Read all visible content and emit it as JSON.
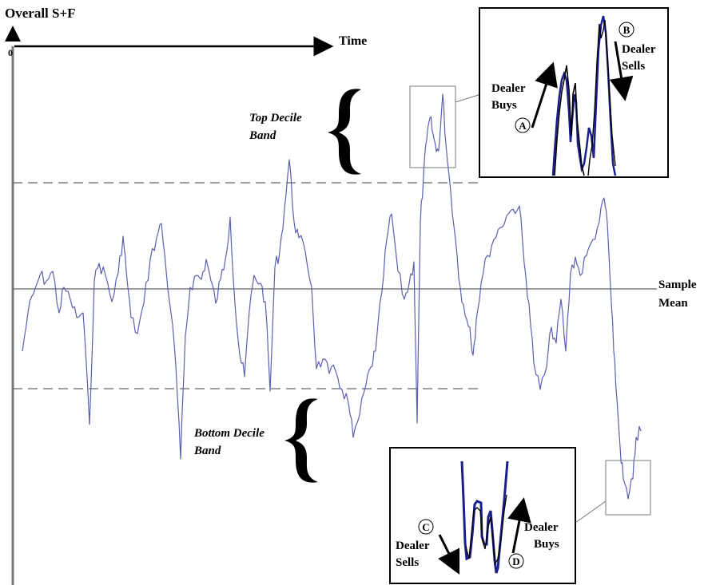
{
  "chart_data": {
    "type": "line",
    "title": "",
    "ylabel": "Overall S+F",
    "xlabel": "Time",
    "y_origin_label": "0",
    "reference_lines": {
      "mean_label_1": "Sample",
      "mean_label_2": "Mean",
      "top_band_1": "Top Decile",
      "top_band_2": "Band",
      "bottom_band_1": "Bottom Decile",
      "bottom_band_2": "Band"
    },
    "insets": [
      {
        "name": "top-inset",
        "labels": {
          "left_1": "Dealer",
          "left_2": "Buys",
          "left_marker": "A",
          "right_1": "Dealer",
          "right_2": "Sells",
          "right_marker": "B"
        }
      },
      {
        "name": "bottom-inset",
        "labels": {
          "left_1": "Dealer",
          "left_2": "Sells",
          "left_marker": "C",
          "right_1": "Dealer",
          "right_2": "Buys",
          "right_marker": "D"
        }
      }
    ],
    "line_color": "#5b5fb0",
    "inset_colors": [
      "#1a1f8c",
      "#000000"
    ],
    "grid": false,
    "legend": "none"
  }
}
